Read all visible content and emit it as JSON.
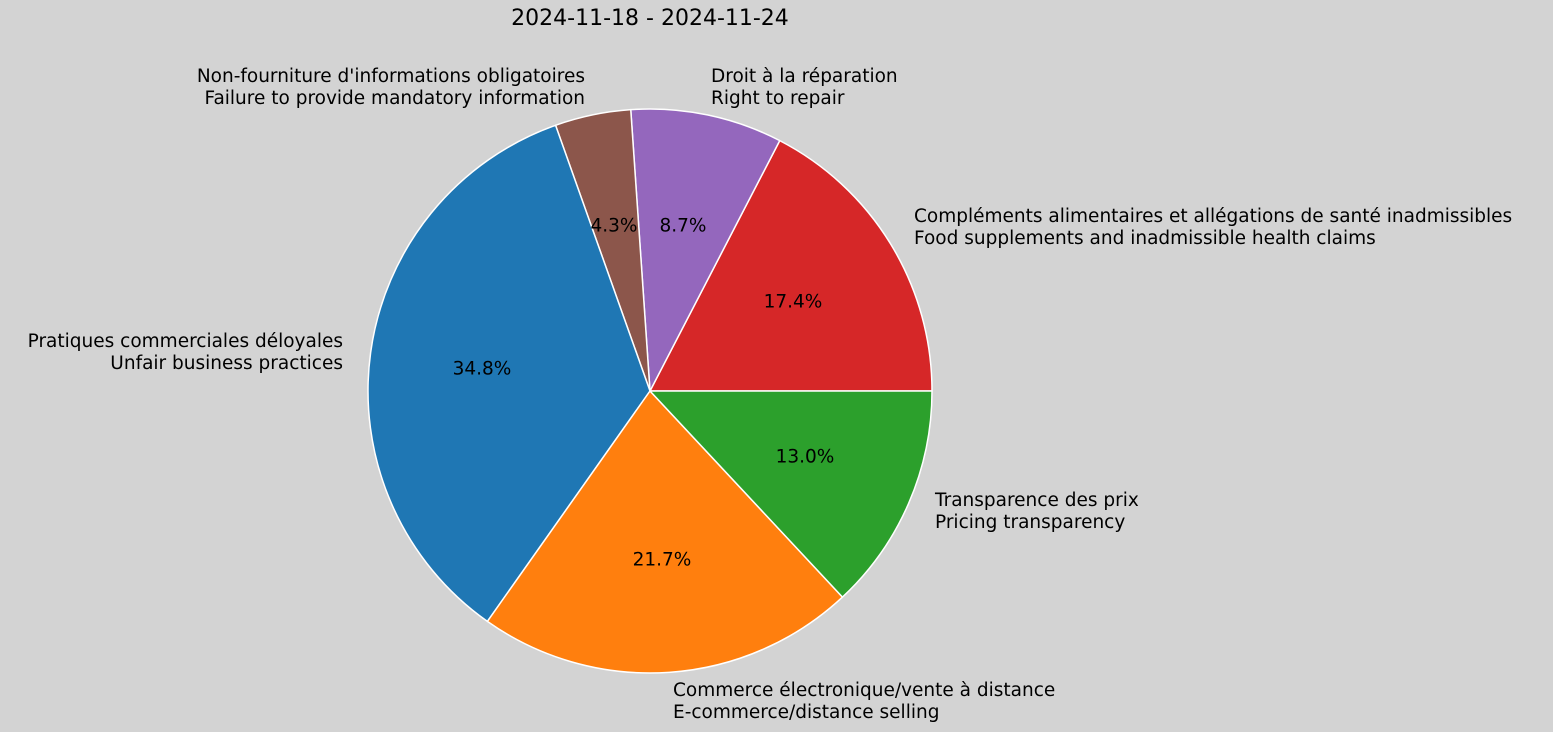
{
  "chart_data": {
    "type": "pie",
    "title": "2024-11-18 - 2024-11-24",
    "start_angle_deg": 0,
    "direction": "counterclockwise",
    "slices": [
      {
        "label_fr": "Compléments alimentaires et allégations de santé inadmissibles",
        "label_en": "Food supplements and inadmissible health claims",
        "value": 4,
        "percent": "17.4%",
        "color": "#d62728"
      },
      {
        "label_fr": "Droit à la réparation",
        "label_en": "Right to repair",
        "value": 2,
        "percent": "8.7%",
        "color": "#9467bd"
      },
      {
        "label_fr": "Non-fourniture d'informations obligatoires",
        "label_en": "Failure to provide mandatory information",
        "value": 1,
        "percent": "4.3%",
        "color": "#8c564b"
      },
      {
        "label_fr": "Pratiques commerciales déloyales",
        "label_en": "Unfair business practices",
        "value": 8,
        "percent": "34.8%",
        "color": "#1f77b4"
      },
      {
        "label_fr": "Commerce électronique/vente à distance",
        "label_en": "E-commerce/distance selling",
        "value": 5,
        "percent": "21.7%",
        "color": "#ff7f0e"
      },
      {
        "label_fr": "Transparence des prix",
        "label_en": "Pricing transparency",
        "value": 3,
        "percent": "13.0%",
        "color": "#2ca02c"
      }
    ],
    "total": 23,
    "background": "#d3d3d3",
    "edge_color": "#ffffff"
  }
}
